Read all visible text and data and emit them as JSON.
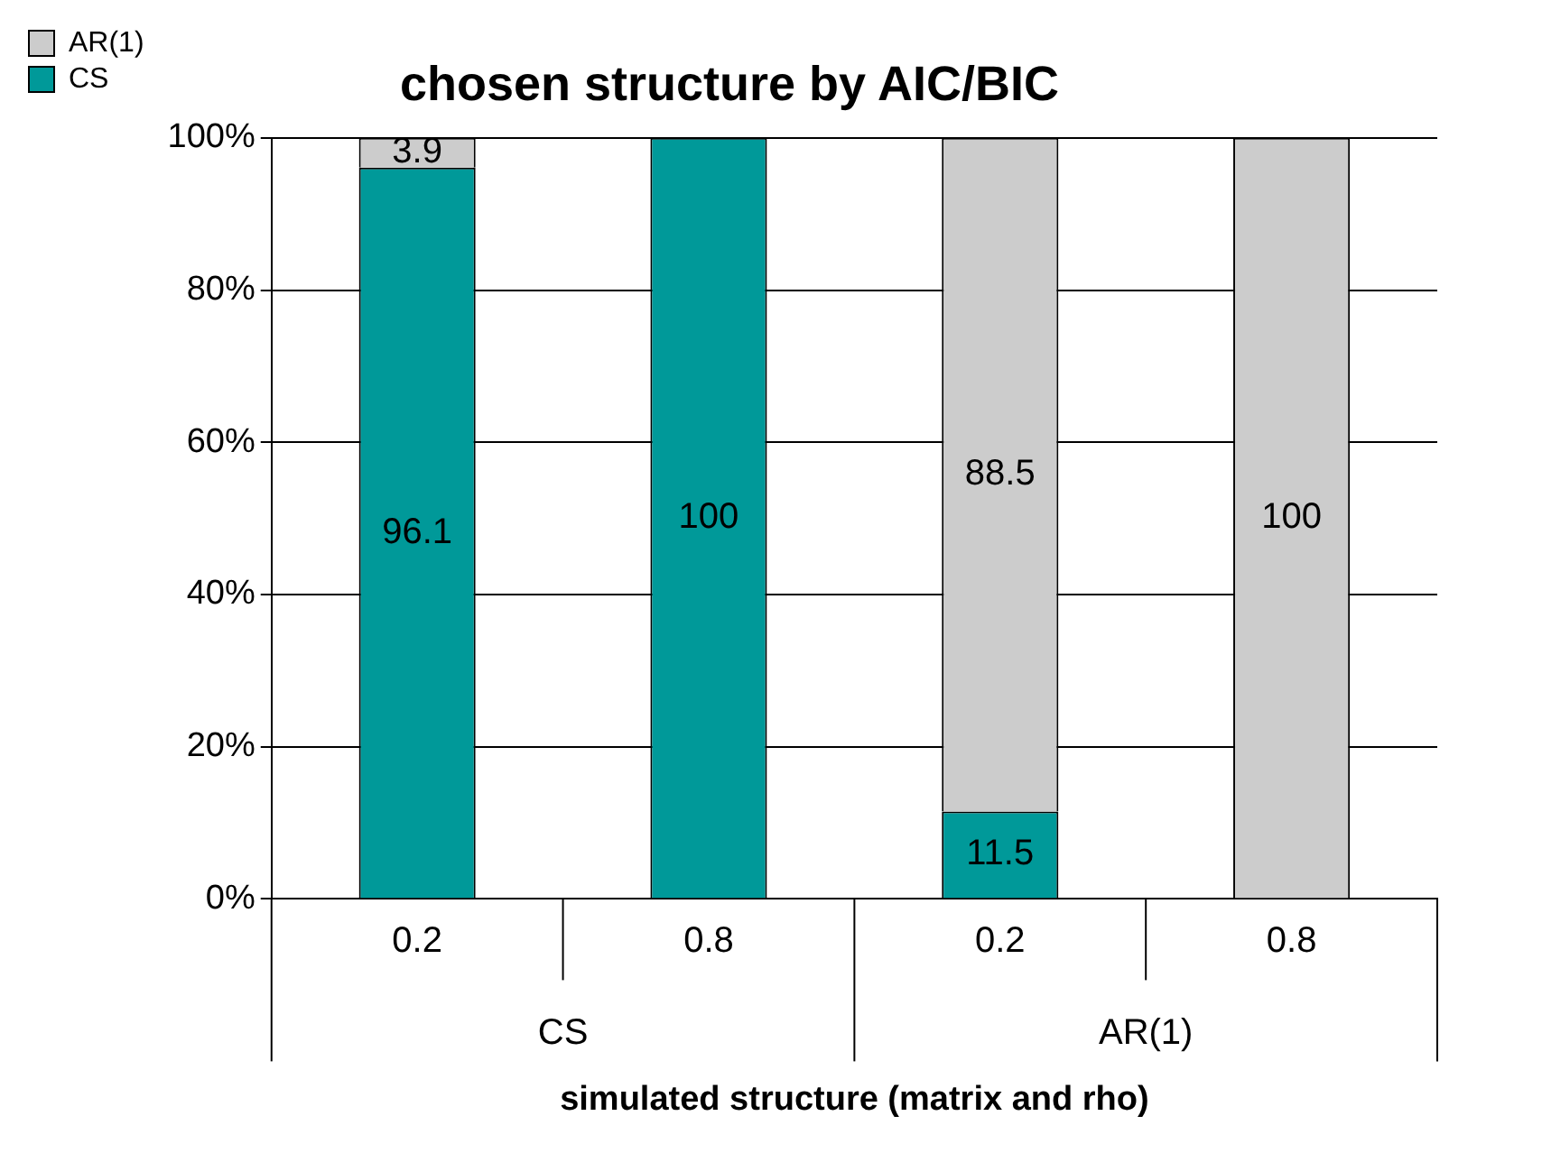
{
  "chart_data": {
    "type": "bar",
    "title": "chosen structure by AIC/BIC",
    "xlabel": "simulated structure (matrix and rho)",
    "categories": [
      "0.2",
      "0.8",
      "0.2",
      "0.8"
    ],
    "stacked": true,
    "series": [
      {
        "name": "CS",
        "color": "#009999",
        "values": [
          96.1,
          100,
          11.5,
          0
        ],
        "value_labels": [
          "96.1",
          "100",
          "11.5",
          null
        ]
      },
      {
        "name": "AR(1)",
        "color": "#cccccc",
        "values": [
          3.9,
          0,
          88.5,
          100
        ],
        "value_labels": [
          "3.9",
          null,
          "88.5",
          "100"
        ]
      }
    ],
    "annotations": [
      "CS",
      "AR(1)"
    ],
    "ylim": [
      0,
      100
    ],
    "yticks": [
      {
        "value": 0,
        "label": "0%"
      },
      {
        "value": 20,
        "label": "20%"
      },
      {
        "value": 40,
        "label": "40%"
      },
      {
        "value": 60,
        "label": "60%"
      },
      {
        "value": 80,
        "label": "80%"
      },
      {
        "value": 100,
        "label": "100%"
      }
    ],
    "grid": "y",
    "legend": "top left"
  }
}
